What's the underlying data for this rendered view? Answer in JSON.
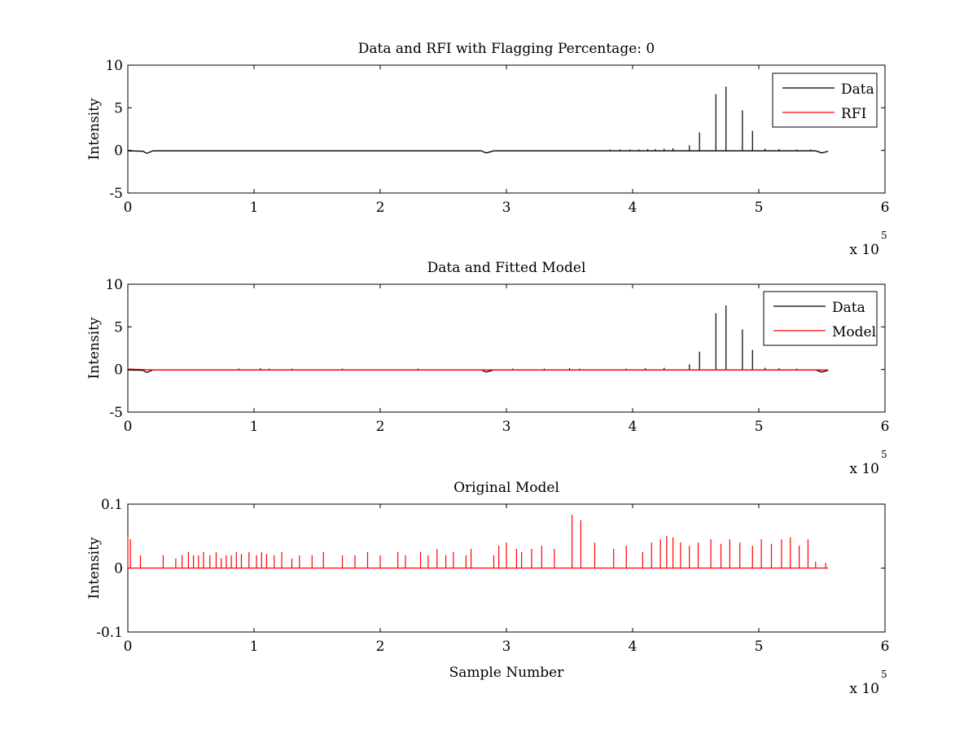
{
  "figure": {
    "background": "#ffffff"
  },
  "chart_data": [
    {
      "type": "line",
      "title": "Data and RFI with Flagging Percentage: 0",
      "xlabel": "",
      "ylabel": "Intensity",
      "xlim": [
        0,
        6
      ],
      "ylim": [
        -5,
        10
      ],
      "xticks": [
        "0",
        "1",
        "2",
        "3",
        "4",
        "5",
        "6"
      ],
      "yticks": [
        "-5",
        "0",
        "5",
        "10"
      ],
      "x_multiplier": {
        "base": "x 10",
        "exponent": "5"
      },
      "legend": {
        "position": "top-right",
        "entries": [
          {
            "label": "Data",
            "color": "#000000"
          },
          {
            "label": "RFI",
            "color": "#ff0000"
          }
        ]
      },
      "grid": false,
      "series": [
        {
          "name": "Data",
          "color": "#000000",
          "baseline": [
            [
              0,
              -0.05
            ],
            [
              0.12,
              -0.1
            ],
            [
              0.15,
              -0.35
            ],
            [
              0.2,
              -0.05
            ],
            [
              1.02,
              -0.05
            ],
            [
              2.8,
              -0.05
            ],
            [
              2.84,
              -0.3
            ],
            [
              2.9,
              -0.05
            ],
            [
              5.45,
              -0.05
            ],
            [
              5.5,
              -0.3
            ],
            [
              5.55,
              -0.1
            ]
          ],
          "spikes": [
            [
              3.82,
              0.1
            ],
            [
              3.9,
              0.1
            ],
            [
              3.98,
              0.1
            ],
            [
              4.05,
              0.1
            ],
            [
              4.12,
              0.15
            ],
            [
              4.18,
              0.15
            ],
            [
              4.25,
              0.2
            ],
            [
              4.32,
              0.25
            ],
            [
              4.45,
              0.6
            ],
            [
              4.53,
              2.1
            ],
            [
              4.66,
              6.6
            ],
            [
              4.74,
              7.5
            ],
            [
              4.87,
              4.7
            ],
            [
              4.95,
              2.3
            ],
            [
              5.05,
              0.2
            ],
            [
              5.16,
              0.15
            ],
            [
              5.3,
              0.1
            ],
            [
              5.41,
              0.1
            ]
          ]
        },
        {
          "name": "RFI",
          "color": "#ff0000",
          "baseline": [],
          "spikes": []
        }
      ]
    },
    {
      "type": "line",
      "title": "Data and Fitted Model",
      "xlabel": "",
      "ylabel": "Intensity",
      "xlim": [
        0,
        6
      ],
      "ylim": [
        -5,
        10
      ],
      "xticks": [
        "0",
        "1",
        "2",
        "3",
        "4",
        "5",
        "6"
      ],
      "yticks": [
        "-5",
        "0",
        "5",
        "10"
      ],
      "x_multiplier": {
        "base": "x 10",
        "exponent": "5"
      },
      "legend": {
        "position": "top-right",
        "entries": [
          {
            "label": "Data",
            "color": "#000000"
          },
          {
            "label": "Model",
            "color": "#ff0000"
          }
        ]
      },
      "grid": false,
      "series": [
        {
          "name": "Data",
          "color": "#000000",
          "baseline": [
            [
              0,
              -0.05
            ],
            [
              0.12,
              -0.1
            ],
            [
              0.15,
              -0.35
            ],
            [
              0.2,
              -0.05
            ],
            [
              2.8,
              -0.05
            ],
            [
              2.84,
              -0.3
            ],
            [
              2.9,
              -0.05
            ],
            [
              5.45,
              -0.05
            ],
            [
              5.5,
              -0.3
            ],
            [
              5.55,
              -0.1
            ]
          ],
          "spikes": [
            [
              0.88,
              0.1
            ],
            [
              1.05,
              0.15
            ],
            [
              1.12,
              0.1
            ],
            [
              1.3,
              0.1
            ],
            [
              1.7,
              0.1
            ],
            [
              2.3,
              0.1
            ],
            [
              3.05,
              0.1
            ],
            [
              3.3,
              0.1
            ],
            [
              3.5,
              0.15
            ],
            [
              3.58,
              0.1
            ],
            [
              3.95,
              0.1
            ],
            [
              4.1,
              0.15
            ],
            [
              4.25,
              0.2
            ],
            [
              4.45,
              0.6
            ],
            [
              4.53,
              2.1
            ],
            [
              4.66,
              6.6
            ],
            [
              4.74,
              7.5
            ],
            [
              4.87,
              4.7
            ],
            [
              4.95,
              2.3
            ],
            [
              5.05,
              0.2
            ],
            [
              5.16,
              0.15
            ],
            [
              5.3,
              0.1
            ]
          ]
        },
        {
          "name": "Model",
          "color": "#ff0000",
          "baseline": [
            [
              0,
              0.05
            ],
            [
              0.2,
              -0.05
            ],
            [
              5.55,
              -0.05
            ]
          ],
          "spikes": []
        }
      ]
    },
    {
      "type": "line",
      "title": "Original Model",
      "xlabel": "Sample Number",
      "ylabel": "Intensity",
      "xlim": [
        0,
        6
      ],
      "ylim": [
        -0.1,
        0.1
      ],
      "xticks": [
        "0",
        "1",
        "2",
        "3",
        "4",
        "5",
        "6"
      ],
      "yticks": [
        "-0.1",
        "0",
        "0.1"
      ],
      "x_multiplier": {
        "base": "x 10",
        "exponent": "5"
      },
      "grid": false,
      "series": [
        {
          "name": "Model",
          "color": "#ff0000",
          "baseline": [
            [
              0,
              0
            ],
            [
              5.55,
              0
            ]
          ],
          "spikes": [
            [
              0.0,
              0.05
            ],
            [
              0.02,
              0.045
            ],
            [
              0.1,
              0.02
            ],
            [
              0.28,
              0.02
            ],
            [
              0.38,
              0.015
            ],
            [
              0.43,
              0.02
            ],
            [
              0.48,
              0.025
            ],
            [
              0.52,
              0.02
            ],
            [
              0.56,
              0.02
            ],
            [
              0.6,
              0.025
            ],
            [
              0.65,
              0.02
            ],
            [
              0.7,
              0.025
            ],
            [
              0.74,
              0.015
            ],
            [
              0.78,
              0.02
            ],
            [
              0.82,
              0.02
            ],
            [
              0.86,
              0.025
            ],
            [
              0.9,
              0.022
            ],
            [
              0.96,
              0.025
            ],
            [
              1.02,
              0.02
            ],
            [
              1.06,
              0.025
            ],
            [
              1.1,
              0.022
            ],
            [
              1.16,
              0.02
            ],
            [
              1.22,
              0.025
            ],
            [
              1.3,
              0.015
            ],
            [
              1.36,
              0.02
            ],
            [
              1.46,
              0.02
            ],
            [
              1.55,
              0.025
            ],
            [
              1.7,
              0.02
            ],
            [
              1.8,
              0.02
            ],
            [
              1.9,
              0.025
            ],
            [
              2.0,
              0.02
            ],
            [
              2.14,
              0.025
            ],
            [
              2.2,
              0.02
            ],
            [
              2.32,
              0.025
            ],
            [
              2.38,
              0.02
            ],
            [
              2.45,
              0.03
            ],
            [
              2.52,
              0.02
            ],
            [
              2.58,
              0.025
            ],
            [
              2.68,
              0.02
            ],
            [
              2.72,
              0.03
            ],
            [
              2.9,
              0.02
            ],
            [
              2.94,
              0.035
            ],
            [
              3.0,
              0.04
            ],
            [
              3.08,
              0.03
            ],
            [
              3.12,
              0.025
            ],
            [
              3.2,
              0.03
            ],
            [
              3.28,
              0.035
            ],
            [
              3.38,
              0.03
            ],
            [
              3.52,
              0.083
            ],
            [
              3.59,
              0.075
            ],
            [
              3.7,
              0.04
            ],
            [
              3.85,
              0.03
            ],
            [
              3.95,
              0.035
            ],
            [
              4.08,
              0.025
            ],
            [
              4.15,
              0.04
            ],
            [
              4.22,
              0.045
            ],
            [
              4.27,
              0.05
            ],
            [
              4.32,
              0.048
            ],
            [
              4.38,
              0.04
            ],
            [
              4.45,
              0.035
            ],
            [
              4.52,
              0.04
            ],
            [
              4.62,
              0.045
            ],
            [
              4.7,
              0.038
            ],
            [
              4.77,
              0.045
            ],
            [
              4.85,
              0.04
            ],
            [
              4.95,
              0.035
            ],
            [
              5.02,
              0.045
            ],
            [
              5.1,
              0.038
            ],
            [
              5.18,
              0.045
            ],
            [
              5.25,
              0.048
            ],
            [
              5.32,
              0.035
            ],
            [
              5.39,
              0.045
            ],
            [
              5.45,
              0.01
            ],
            [
              5.53,
              0.008
            ]
          ]
        }
      ]
    }
  ]
}
